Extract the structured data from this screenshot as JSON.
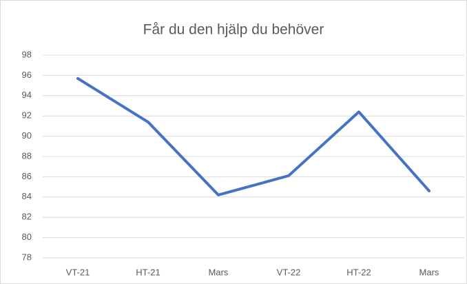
{
  "chart_data": {
    "type": "line",
    "title": "Får du den hjälp du behöver",
    "categories": [
      "VT-21",
      "HT-21",
      "Mars",
      "VT-22",
      "HT-22",
      "Mars"
    ],
    "values": [
      95.7,
      91.4,
      84.2,
      86.1,
      92.4,
      84.6
    ],
    "color": "#4472c4",
    "ylim": [
      78,
      98
    ],
    "yticks": [
      78,
      80,
      82,
      84,
      86,
      88,
      90,
      92,
      94,
      96,
      98
    ],
    "grid": true
  }
}
